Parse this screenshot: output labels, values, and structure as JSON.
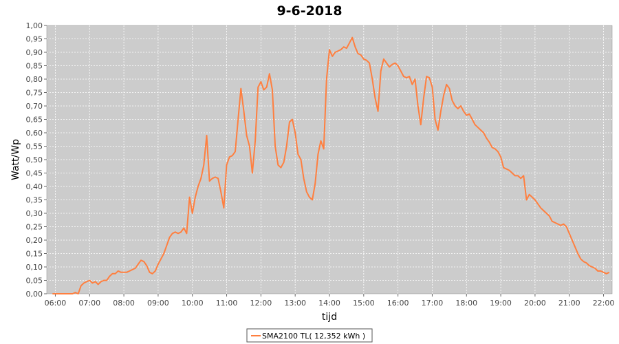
{
  "chart_data": {
    "type": "line",
    "title": "9-6-2018",
    "xlabel": "tijd",
    "ylabel": "Watt/Wp",
    "xlim": [
      "05:45",
      "22:15"
    ],
    "ylim": [
      0,
      1.0
    ],
    "x_ticks": [
      "06:00",
      "07:00",
      "08:00",
      "09:00",
      "10:00",
      "11:00",
      "12:00",
      "13:00",
      "14:00",
      "15:00",
      "16:00",
      "17:00",
      "18:00",
      "19:00",
      "20:00",
      "21:00",
      "22:00"
    ],
    "y_ticks": [
      "0,00",
      "0,05",
      "0,10",
      "0,15",
      "0,20",
      "0,25",
      "0,30",
      "0,35",
      "0,40",
      "0,45",
      "0,50",
      "0,55",
      "0,60",
      "0,65",
      "0,70",
      "0,75",
      "0,80",
      "0,85",
      "0,90",
      "0,95",
      "1,00"
    ],
    "grid": true,
    "legend_position": "bottom",
    "series": [
      {
        "name": "SMA2100 TL( 12,352 kWh )",
        "color": "#ff7f3f",
        "points": [
          [
            "05:55",
            0.0
          ],
          [
            "06:30",
            0.0
          ],
          [
            "06:35",
            0.005
          ],
          [
            "06:40",
            0.0
          ],
          [
            "06:45",
            0.03
          ],
          [
            "06:50",
            0.04
          ],
          [
            "06:55",
            0.045
          ],
          [
            "07:00",
            0.05
          ],
          [
            "07:05",
            0.04
          ],
          [
            "07:10",
            0.045
          ],
          [
            "07:15",
            0.035
          ],
          [
            "07:20",
            0.045
          ],
          [
            "07:25",
            0.05
          ],
          [
            "07:30",
            0.05
          ],
          [
            "07:35",
            0.065
          ],
          [
            "07:40",
            0.075
          ],
          [
            "07:45",
            0.075
          ],
          [
            "07:50",
            0.085
          ],
          [
            "07:55",
            0.08
          ],
          [
            "08:00",
            0.08
          ],
          [
            "08:05",
            0.08
          ],
          [
            "08:10",
            0.085
          ],
          [
            "08:15",
            0.09
          ],
          [
            "08:20",
            0.095
          ],
          [
            "08:25",
            0.11
          ],
          [
            "08:30",
            0.125
          ],
          [
            "08:35",
            0.12
          ],
          [
            "08:40",
            0.105
          ],
          [
            "08:45",
            0.08
          ],
          [
            "08:50",
            0.075
          ],
          [
            "08:55",
            0.085
          ],
          [
            "09:00",
            0.11
          ],
          [
            "09:05",
            0.13
          ],
          [
            "09:10",
            0.15
          ],
          [
            "09:15",
            0.18
          ],
          [
            "09:20",
            0.21
          ],
          [
            "09:25",
            0.225
          ],
          [
            "09:30",
            0.23
          ],
          [
            "09:35",
            0.225
          ],
          [
            "09:40",
            0.23
          ],
          [
            "09:45",
            0.245
          ],
          [
            "09:50",
            0.225
          ],
          [
            "09:55",
            0.36
          ],
          [
            "10:00",
            0.3
          ],
          [
            "10:05",
            0.36
          ],
          [
            "10:10",
            0.4
          ],
          [
            "10:15",
            0.43
          ],
          [
            "10:20",
            0.48
          ],
          [
            "10:25",
            0.59
          ],
          [
            "10:30",
            0.42
          ],
          [
            "10:35",
            0.43
          ],
          [
            "10:40",
            0.435
          ],
          [
            "10:45",
            0.43
          ],
          [
            "10:50",
            0.38
          ],
          [
            "10:55",
            0.32
          ],
          [
            "11:00",
            0.48
          ],
          [
            "11:05",
            0.51
          ],
          [
            "11:10",
            0.515
          ],
          [
            "11:15",
            0.53
          ],
          [
            "11:20",
            0.65
          ],
          [
            "11:25",
            0.765
          ],
          [
            "11:30",
            0.68
          ],
          [
            "11:35",
            0.59
          ],
          [
            "11:40",
            0.55
          ],
          [
            "11:45",
            0.45
          ],
          [
            "11:50",
            0.57
          ],
          [
            "11:55",
            0.77
          ],
          [
            "12:00",
            0.79
          ],
          [
            "12:05",
            0.76
          ],
          [
            "12:10",
            0.77
          ],
          [
            "12:15",
            0.82
          ],
          [
            "12:20",
            0.76
          ],
          [
            "12:25",
            0.55
          ],
          [
            "12:30",
            0.48
          ],
          [
            "12:35",
            0.47
          ],
          [
            "12:40",
            0.49
          ],
          [
            "12:45",
            0.55
          ],
          [
            "12:50",
            0.64
          ],
          [
            "12:55",
            0.65
          ],
          [
            "13:00",
            0.6
          ],
          [
            "13:05",
            0.52
          ],
          [
            "13:10",
            0.5
          ],
          [
            "13:15",
            0.43
          ],
          [
            "13:20",
            0.38
          ],
          [
            "13:25",
            0.36
          ],
          [
            "13:30",
            0.35
          ],
          [
            "13:35",
            0.41
          ],
          [
            "13:40",
            0.52
          ],
          [
            "13:45",
            0.57
          ],
          [
            "13:50",
            0.54
          ],
          [
            "13:55",
            0.8
          ],
          [
            "14:00",
            0.91
          ],
          [
            "14:05",
            0.885
          ],
          [
            "14:10",
            0.9
          ],
          [
            "14:15",
            0.905
          ],
          [
            "14:20",
            0.91
          ],
          [
            "14:25",
            0.92
          ],
          [
            "14:30",
            0.915
          ],
          [
            "14:35",
            0.935
          ],
          [
            "14:40",
            0.955
          ],
          [
            "14:45",
            0.92
          ],
          [
            "14:50",
            0.895
          ],
          [
            "14:55",
            0.89
          ],
          [
            "15:00",
            0.875
          ],
          [
            "15:05",
            0.87
          ],
          [
            "15:10",
            0.86
          ],
          [
            "15:15",
            0.8
          ],
          [
            "15:20",
            0.73
          ],
          [
            "15:25",
            0.68
          ],
          [
            "15:30",
            0.83
          ],
          [
            "15:35",
            0.875
          ],
          [
            "15:40",
            0.86
          ],
          [
            "15:45",
            0.845
          ],
          [
            "15:50",
            0.855
          ],
          [
            "15:55",
            0.86
          ],
          [
            "16:00",
            0.85
          ],
          [
            "16:05",
            0.83
          ],
          [
            "16:10",
            0.81
          ],
          [
            "16:15",
            0.805
          ],
          [
            "16:20",
            0.81
          ],
          [
            "16:25",
            0.78
          ],
          [
            "16:30",
            0.8
          ],
          [
            "16:35",
            0.7
          ],
          [
            "16:40",
            0.63
          ],
          [
            "16:45",
            0.73
          ],
          [
            "16:50",
            0.81
          ],
          [
            "16:55",
            0.805
          ],
          [
            "17:00",
            0.77
          ],
          [
            "17:05",
            0.65
          ],
          [
            "17:10",
            0.61
          ],
          [
            "17:15",
            0.68
          ],
          [
            "17:20",
            0.74
          ],
          [
            "17:25",
            0.78
          ],
          [
            "17:30",
            0.765
          ],
          [
            "17:35",
            0.72
          ],
          [
            "17:40",
            0.7
          ],
          [
            "17:45",
            0.69
          ],
          [
            "17:50",
            0.7
          ],
          [
            "17:55",
            0.68
          ],
          [
            "18:00",
            0.665
          ],
          [
            "18:05",
            0.67
          ],
          [
            "18:10",
            0.65
          ],
          [
            "18:15",
            0.63
          ],
          [
            "18:20",
            0.62
          ],
          [
            "18:25",
            0.61
          ],
          [
            "18:30",
            0.6
          ],
          [
            "18:35",
            0.58
          ],
          [
            "18:40",
            0.565
          ],
          [
            "18:45",
            0.545
          ],
          [
            "18:50",
            0.54
          ],
          [
            "18:55",
            0.53
          ],
          [
            "19:00",
            0.51
          ],
          [
            "19:05",
            0.47
          ],
          [
            "19:10",
            0.465
          ],
          [
            "19:15",
            0.46
          ],
          [
            "19:20",
            0.45
          ],
          [
            "19:25",
            0.44
          ],
          [
            "19:30",
            0.44
          ],
          [
            "19:35",
            0.43
          ],
          [
            "19:40",
            0.44
          ],
          [
            "19:45",
            0.35
          ],
          [
            "19:50",
            0.37
          ],
          [
            "19:55",
            0.36
          ],
          [
            "20:00",
            0.35
          ],
          [
            "20:05",
            0.335
          ],
          [
            "20:10",
            0.32
          ],
          [
            "20:15",
            0.31
          ],
          [
            "20:20",
            0.3
          ],
          [
            "20:25",
            0.29
          ],
          [
            "20:30",
            0.27
          ],
          [
            "20:35",
            0.265
          ],
          [
            "20:40",
            0.26
          ],
          [
            "20:45",
            0.255
          ],
          [
            "20:50",
            0.26
          ],
          [
            "20:55",
            0.25
          ],
          [
            "21:00",
            0.225
          ],
          [
            "21:05",
            0.2
          ],
          [
            "21:10",
            0.175
          ],
          [
            "21:15",
            0.15
          ],
          [
            "21:20",
            0.13
          ],
          [
            "21:25",
            0.12
          ],
          [
            "21:30",
            0.115
          ],
          [
            "21:35",
            0.105
          ],
          [
            "21:40",
            0.1
          ],
          [
            "21:45",
            0.095
          ],
          [
            "21:50",
            0.085
          ],
          [
            "21:55",
            0.085
          ],
          [
            "22:00",
            0.08
          ],
          [
            "22:05",
            0.075
          ],
          [
            "22:10",
            0.08
          ]
        ]
      }
    ]
  }
}
